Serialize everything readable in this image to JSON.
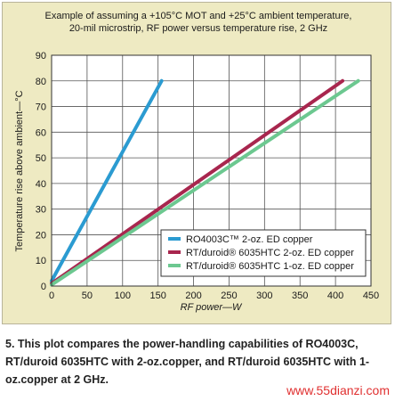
{
  "chart_data": {
    "type": "line",
    "title": "Example of assuming a +105°C MOT and +25°C ambient temperature,",
    "subtitle": "20-mil microstrip, RF power versus temperature rise, 2 GHz",
    "xlabel": "RF power—W",
    "ylabel": "Temperature rise above ambient—°C",
    "xlim": [
      0,
      450
    ],
    "ylim": [
      0,
      90
    ],
    "x_ticks": [
      0,
      50,
      100,
      150,
      200,
      250,
      300,
      350,
      400,
      450
    ],
    "y_ticks": [
      0,
      10,
      20,
      30,
      40,
      50,
      60,
      70,
      80,
      90
    ],
    "grid": true,
    "legend_position": "bottom-right",
    "series": [
      {
        "name": "RO4003C™ 2-oz. ED copper",
        "color": "#2b9bd1",
        "x": [
          0,
          155
        ],
        "y": [
          2,
          80
        ]
      },
      {
        "name": "RT/duroid® 6035HTC 2-oz. ED copper",
        "color": "#a8264e",
        "x": [
          0,
          410
        ],
        "y": [
          1,
          80
        ]
      },
      {
        "name": "RT/duroid® 6035HTC 1-oz. ED copper",
        "color": "#6cc890",
        "x": [
          0,
          432
        ],
        "y": [
          0.5,
          80
        ]
      }
    ]
  },
  "caption": "5. This plot compares the power-handling capabilities of RO4003C, RT/duroid 6035HTC with 2-oz.copper, and RT/duroid 6035HTC with 1-oz.copper at 2 GHz.",
  "watermark": "www.55dianzi.com"
}
